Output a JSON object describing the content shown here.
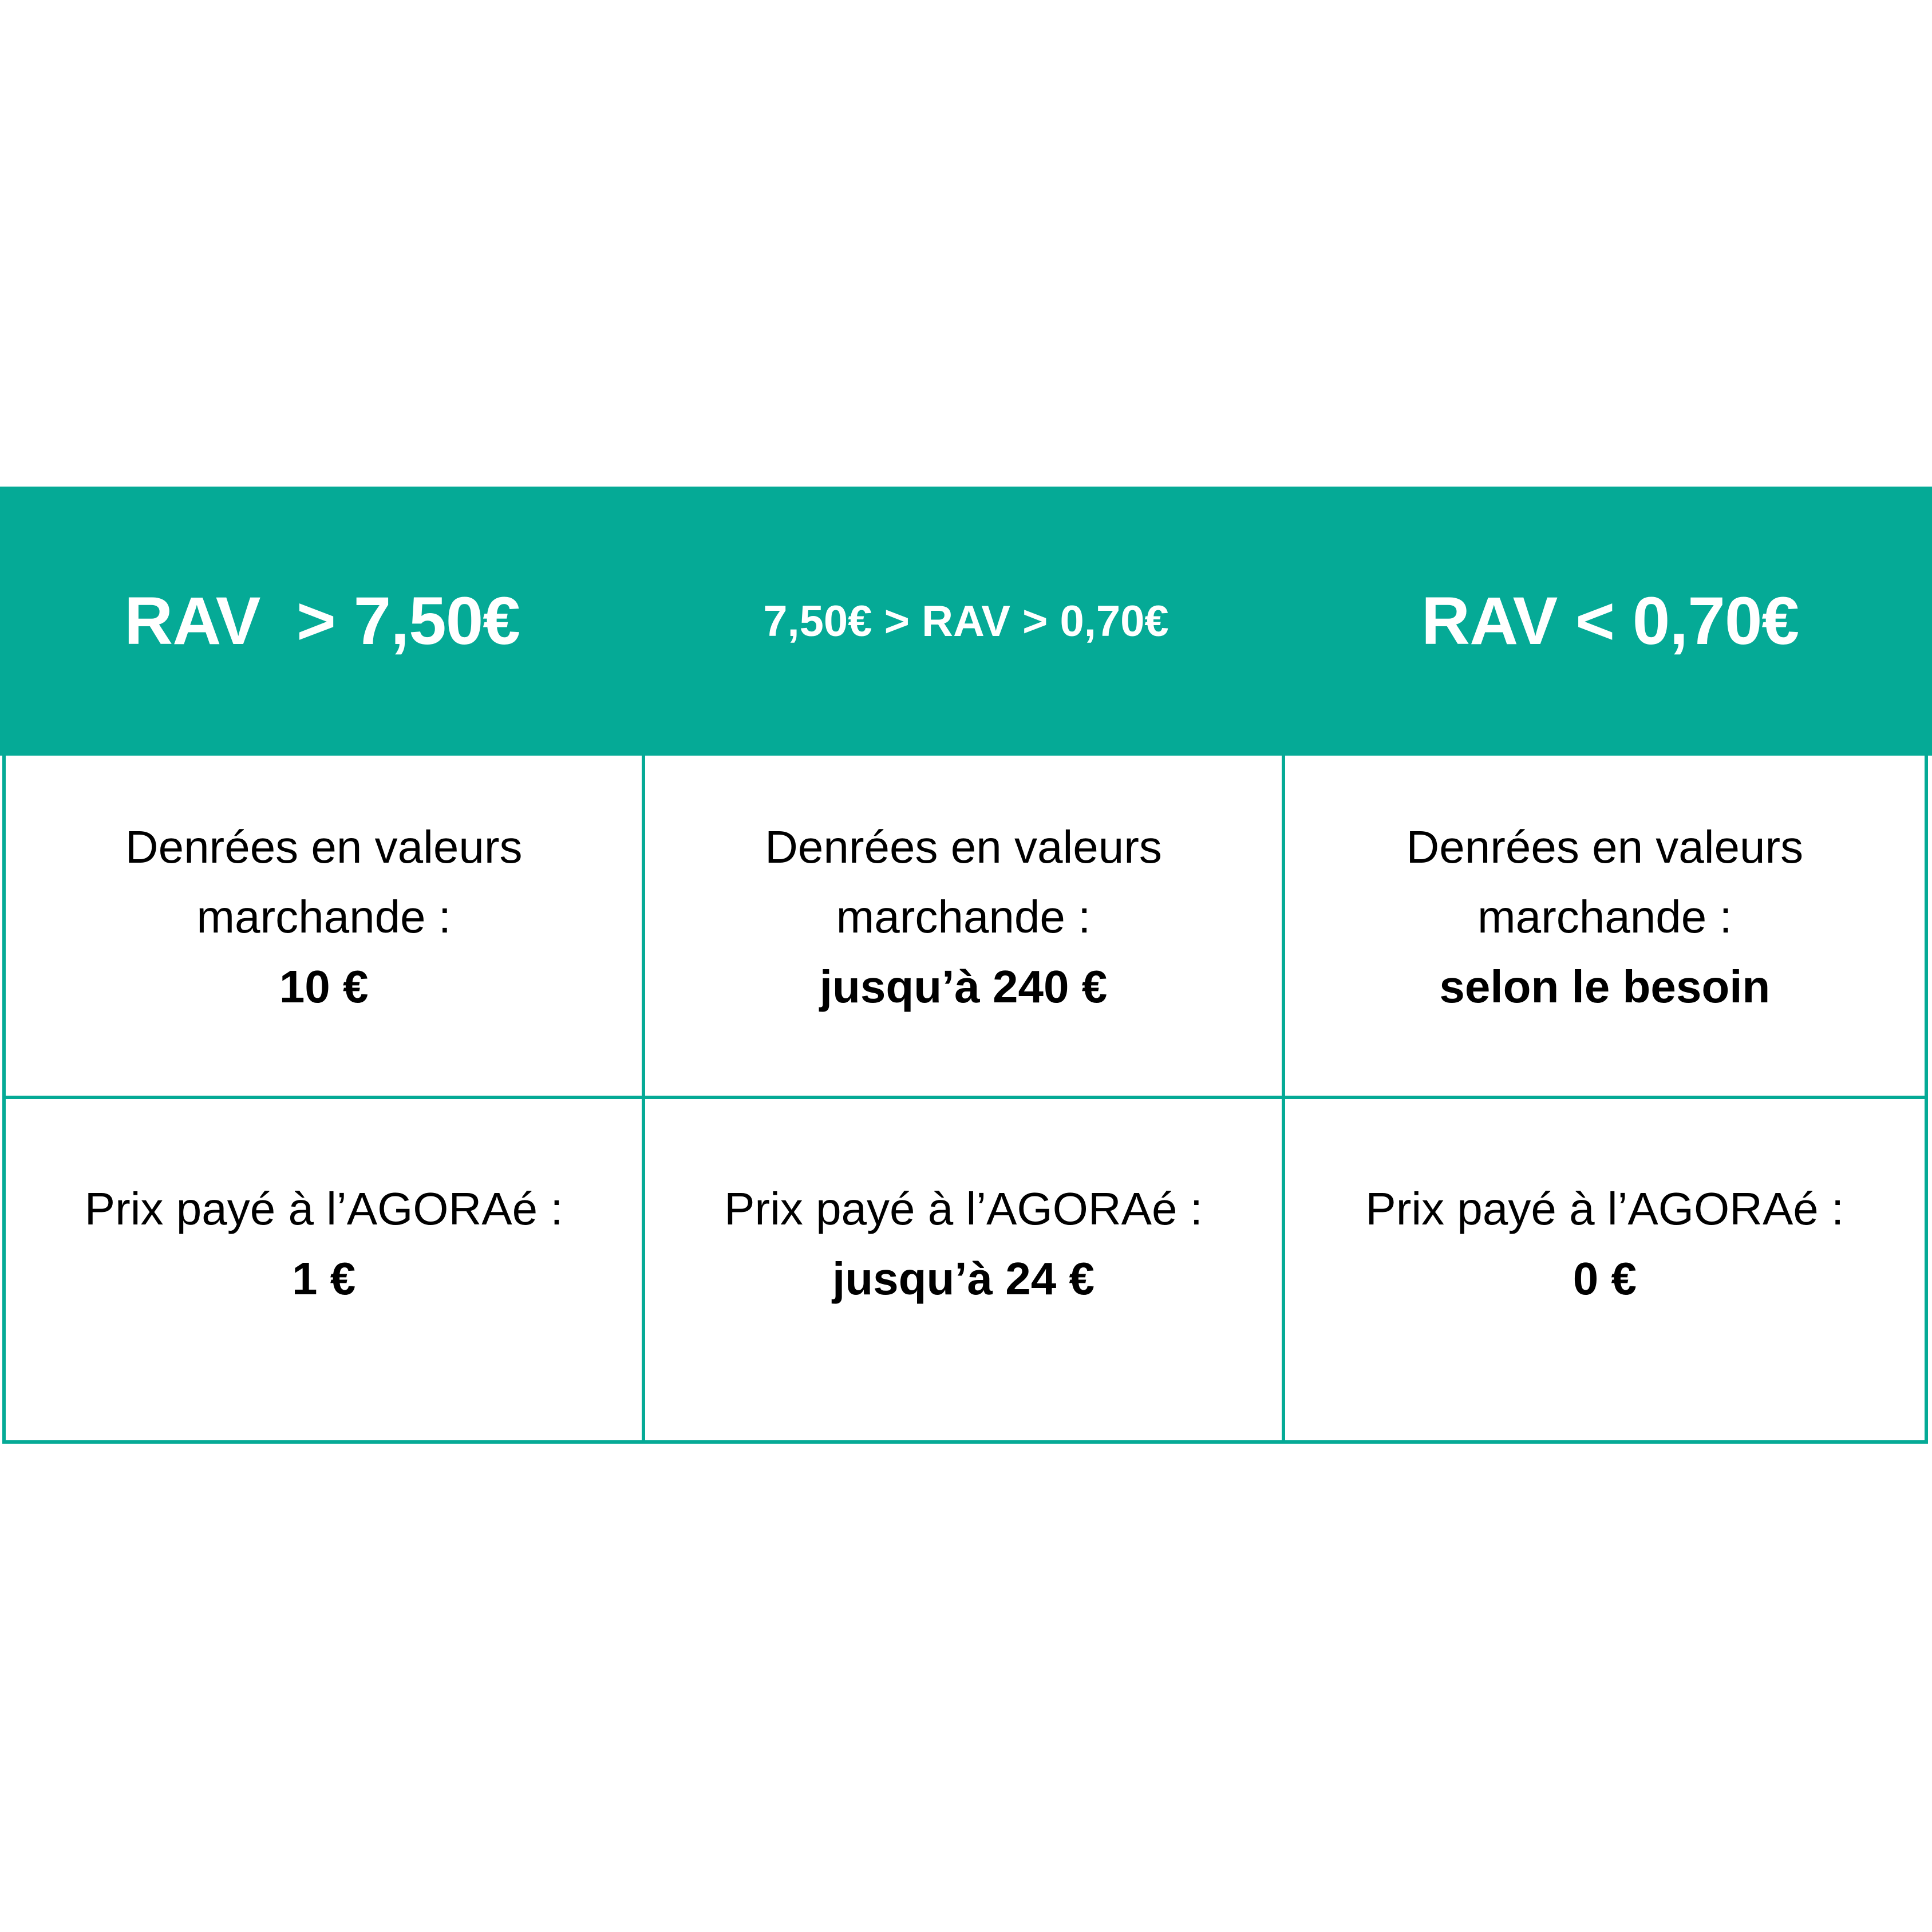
{
  "colors": {
    "accent": "#05aa96",
    "text": "#000000",
    "header_text": "#ffffff"
  },
  "headers": [
    "RAV  > 7,50€",
    "7,50€ > RAV > 0,70€",
    "RAV < 0,70€"
  ],
  "rows": [
    {
      "cells": [
        {
          "line1": "Denrées en valeurs",
          "line2": "marchande :",
          "value": "10 €"
        },
        {
          "line1": "Denrées en valeurs",
          "line2": "marchande :",
          "value": "jusqu’à 240 €"
        },
        {
          "line1": "Denrées en valeurs",
          "line2": "marchande :",
          "value": "selon le besoin"
        }
      ]
    },
    {
      "cells": [
        {
          "line1": "Prix payé à l’AGORAé :",
          "value": "1 €"
        },
        {
          "line1": "Prix payé à l’AGORAé :",
          "value": "jusqu’à 24 €"
        },
        {
          "line1": "Prix payé à l’AGORAé :",
          "value": "0 €"
        }
      ]
    }
  ]
}
